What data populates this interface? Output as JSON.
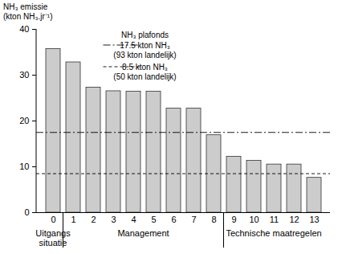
{
  "chart_data": {
    "type": "bar",
    "y_label": "NH₃ emissie\n(kton NH₃.jr⁻¹)",
    "categories": [
      "0",
      "1",
      "2",
      "3",
      "4",
      "5",
      "6",
      "7",
      "8",
      "9",
      "10",
      "11",
      "12",
      "13"
    ],
    "values": [
      35.7,
      32.8,
      27.3,
      26.5,
      26.4,
      26.4,
      22.7,
      22.7,
      16.9,
      12.2,
      11.3,
      10.5,
      10.5,
      7.6
    ],
    "color": "#cccccc",
    "ylim": [
      0,
      40
    ],
    "yticks": [
      0,
      10,
      20,
      30,
      40
    ],
    "reference_lines_title": "NH₃ plafonds",
    "reference_lines": [
      {
        "value": 17.5,
        "label": "17.5 kton NH₃",
        "sublabel": "(93 kton landelijk)",
        "line_style": "dashdot"
      },
      {
        "value": 8.5,
        "label": "8.5 kton NH₃",
        "sublabel": "(50 kton landelijk)",
        "line_style": "dashed"
      }
    ],
    "groups": [
      {
        "label": "Uitgangs\nsituatie",
        "from": "0",
        "to": "0"
      },
      {
        "label": "Management",
        "from": "1",
        "to": "8"
      },
      {
        "label": "Technische maatregelen",
        "from": "9",
        "to": "13"
      }
    ]
  }
}
